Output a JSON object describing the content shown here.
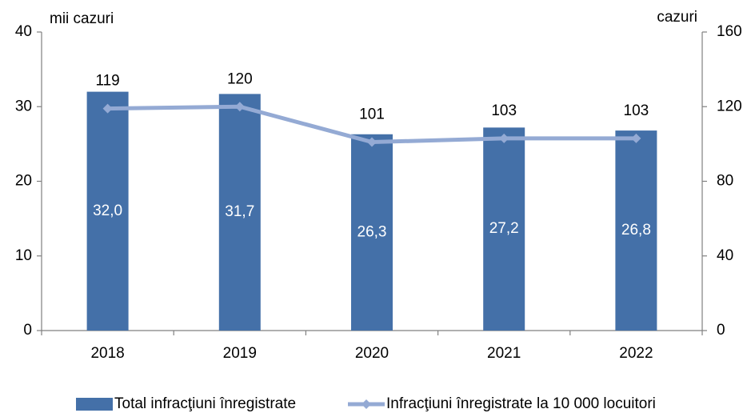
{
  "chart_data": {
    "type": "bar",
    "categories": [
      "2018",
      "2019",
      "2020",
      "2021",
      "2022"
    ],
    "ylabel": "mii cazuri",
    "y2label": "cazuri",
    "ylim": [
      0,
      40
    ],
    "yticks": [
      0,
      10,
      20,
      30,
      40
    ],
    "y2lim": [
      0,
      160
    ],
    "y2ticks": [
      0,
      40,
      80,
      120,
      160
    ],
    "legend": "bottom",
    "series": [
      {
        "name": "Total infracţiuni înregistrate",
        "type": "bar",
        "color": "#4470a8",
        "values": [
          32.0,
          31.7,
          26.3,
          27.2,
          26.8
        ],
        "value_labels": [
          "32,0",
          "31,7",
          "26,3",
          "27,2",
          "26,8"
        ]
      },
      {
        "name": "Infracţiuni înregistrate la 10 000 locuitori",
        "type": "line",
        "color": "#94aad4",
        "axis": "y2",
        "values": [
          119,
          120,
          101,
          103,
          103
        ]
      }
    ]
  }
}
